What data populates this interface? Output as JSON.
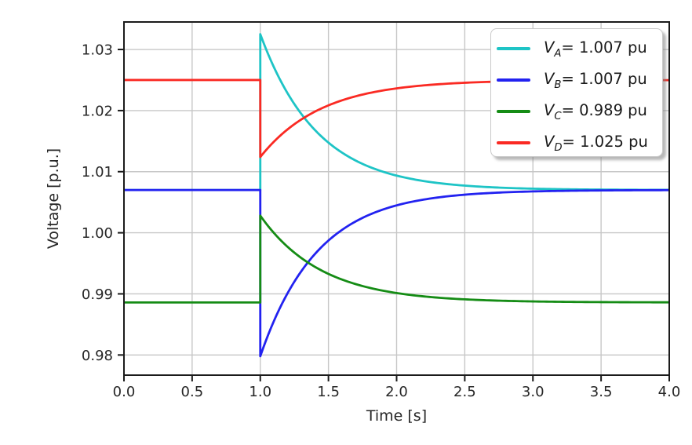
{
  "figure": {
    "background": "#ffffff"
  },
  "chart_data": {
    "type": "line",
    "title": "",
    "xlabel": "Time [s]",
    "ylabel": "Voltage [p.u.]",
    "xlim": [
      0.0,
      4.0
    ],
    "ylim": [
      0.9767,
      1.0345
    ],
    "grid": true,
    "legend_position": "upper-right",
    "step_time": 1.0,
    "xticks": {
      "values": [
        0.0,
        0.5,
        1.0,
        1.5,
        2.0,
        2.5,
        3.0,
        3.5,
        4.0
      ],
      "labels": [
        "0.0",
        "0.5",
        "1.0",
        "1.5",
        "2.0",
        "2.5",
        "3.0",
        "3.5",
        "4.0"
      ]
    },
    "yticks": {
      "values": [
        0.98,
        0.99,
        1.0,
        1.01,
        1.02,
        1.03
      ],
      "labels": [
        "0.98",
        "0.99",
        "1.00",
        "1.01",
        "1.02",
        "1.03"
      ]
    },
    "style": {
      "grid_color": "#c7c7c7",
      "spine_color": "#1b1b1b",
      "tick_color": "#1b1b1b",
      "text_color": "#262626",
      "line_width": 2.8
    },
    "series": [
      {
        "name": "V_A",
        "color": "#1ec4c6",
        "legend": {
          "base": "V",
          "sub": "A",
          "value": "= 1.007 pu"
        },
        "model": {
          "pre": 1.007,
          "post_step": 1.0325,
          "final": 1.007,
          "tau": 0.42
        },
        "points": [
          [
            0,
            1.007
          ],
          [
            1.0,
            1.007
          ],
          [
            1.0,
            1.0325
          ],
          [
            1.25,
            1.0211
          ],
          [
            1.5,
            1.0148
          ],
          [
            2.0,
            1.0094
          ],
          [
            2.5,
            1.0077
          ],
          [
            3.0,
            1.0072
          ],
          [
            4.0,
            1.007
          ]
        ]
      },
      {
        "name": "V_B",
        "color": "#2222f0",
        "legend": {
          "base": "V",
          "sub": "B",
          "value": "= 1.007 pu"
        },
        "model": {
          "pre": 1.007,
          "post_step": 0.9798,
          "final": 1.007,
          "tau": 0.42
        },
        "points": [
          [
            0,
            1.007
          ],
          [
            1.0,
            1.007
          ],
          [
            1.0,
            0.9798
          ],
          [
            1.25,
            0.992
          ],
          [
            1.5,
            0.9987
          ],
          [
            2.0,
            1.0045
          ],
          [
            2.5,
            1.0062
          ],
          [
            3.0,
            1.0068
          ],
          [
            4.0,
            1.007
          ]
        ]
      },
      {
        "name": "V_C",
        "color": "#158c15",
        "legend": {
          "base": "V",
          "sub": "C",
          "value": "= 0.989 pu"
        },
        "model": {
          "pre": 0.9886,
          "post_step": 1.0028,
          "final": 0.9886,
          "tau": 0.45
        },
        "points": [
          [
            0,
            0.9886
          ],
          [
            1.0,
            0.9886
          ],
          [
            1.0,
            1.0028
          ],
          [
            1.25,
            0.9967
          ],
          [
            1.5,
            0.9933
          ],
          [
            2.0,
            0.9901
          ],
          [
            2.5,
            0.9891
          ],
          [
            3.0,
            0.9888
          ],
          [
            4.0,
            0.9886
          ]
        ]
      },
      {
        "name": "V_D",
        "color": "#fa2a23",
        "legend": {
          "base": "V",
          "sub": "D",
          "value": "= 1.025 pu"
        },
        "model": {
          "pre": 1.025,
          "post_step": 1.0124,
          "final": 1.025,
          "tau": 0.45
        },
        "points": [
          [
            0,
            1.025
          ],
          [
            1.0,
            1.025
          ],
          [
            1.0,
            1.0124
          ],
          [
            1.25,
            1.0178
          ],
          [
            1.5,
            1.0209
          ],
          [
            2.0,
            1.0236
          ],
          [
            2.5,
            1.0245
          ],
          [
            3.0,
            1.0249
          ],
          [
            4.0,
            1.025
          ]
        ]
      }
    ]
  }
}
